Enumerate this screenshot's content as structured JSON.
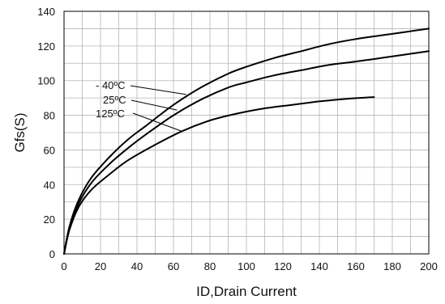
{
  "chart_data": {
    "type": "line",
    "title": "",
    "xlabel": "ID,Drain Current",
    "ylabel": "Gfs(S)",
    "xlim": [
      0,
      200
    ],
    "ylim": [
      0,
      140
    ],
    "xticks": [
      "0",
      "20",
      "40",
      "60",
      "80",
      "100",
      "120",
      "140",
      "160",
      "180",
      "200"
    ],
    "yticks": [
      "0",
      "20",
      "40",
      "60",
      "80",
      "100",
      "120",
      "140"
    ],
    "grid": true,
    "legend": "inline labels with leader lines",
    "line_color": "#000000",
    "grid_color": "#b5b5b5",
    "series": [
      {
        "name": "- 40ºC",
        "x": [
          0,
          3,
          8,
          15,
          25,
          35,
          45,
          60,
          75,
          90,
          100,
          115,
          130,
          145,
          160,
          180,
          200
        ],
        "y": [
          0,
          16,
          31,
          44,
          56,
          66,
          74,
          86,
          96,
          104,
          108,
          113,
          117,
          121,
          124,
          127,
          130
        ]
      },
      {
        "name": "25ºC",
        "x": [
          0,
          3,
          8,
          15,
          25,
          35,
          45,
          60,
          75,
          90,
          100,
          115,
          130,
          145,
          160,
          180,
          200
        ],
        "y": [
          0,
          15,
          29,
          41,
          52,
          61,
          69,
          80,
          89,
          96,
          99,
          103,
          106,
          109,
          111,
          114,
          117
        ]
      },
      {
        "name": "125ºC",
        "x": [
          0,
          3,
          8,
          15,
          25,
          35,
          50,
          65,
          80,
          95,
          110,
          125,
          140,
          155,
          170
        ],
        "y": [
          0,
          14,
          27,
          37,
          46,
          54,
          63,
          71,
          77,
          81,
          84,
          86,
          88,
          89.5,
          90.5
        ]
      }
    ],
    "label_leaders": [
      {
        "series": 0,
        "to_x": 67,
        "to_y": 92
      },
      {
        "series": 1,
        "to_x": 62,
        "to_y": 83
      },
      {
        "series": 2,
        "to_x": 64,
        "to_y": 71
      }
    ]
  }
}
